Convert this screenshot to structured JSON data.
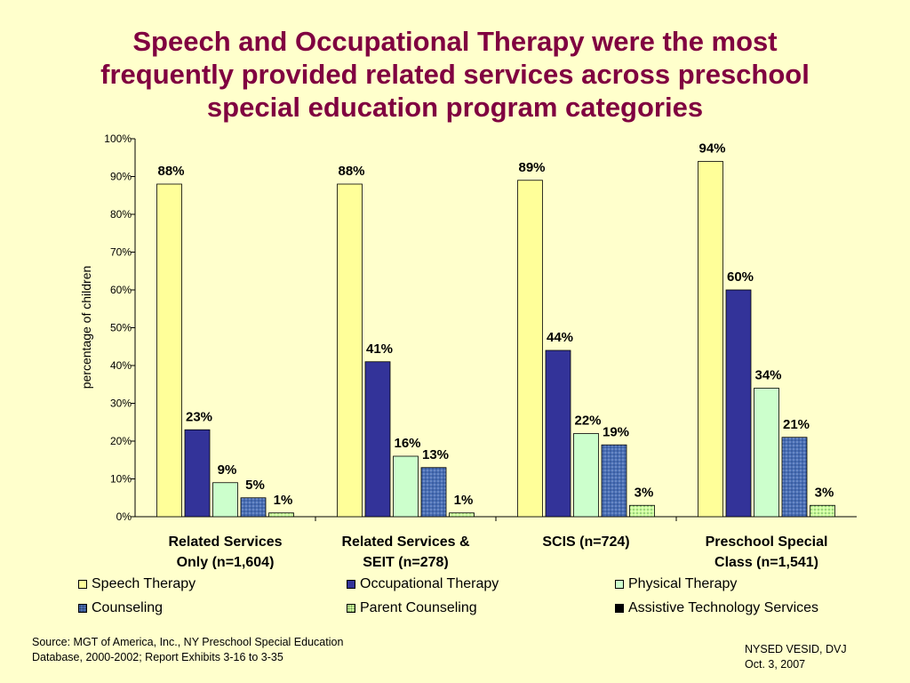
{
  "title_lines": [
    "Speech and Occupational Therapy were the most",
    "frequently provided related services across preschool",
    "special education program categories"
  ],
  "source_lines": [
    "Source: MGT of America, Inc., NY Preschool Special Education",
    "Database, 2000-2002; Report Exhibits 3-16 to 3-35"
  ],
  "footer_lines": [
    "NYSED VESID, DVJ",
    "Oct. 3, 2007"
  ],
  "chart_data": {
    "type": "bar",
    "title": "Speech and Occupational Therapy were the most frequently provided related services across preschool special education program categories",
    "ylabel": "percentage of children",
    "xlabel": "",
    "ylim": [
      0,
      100
    ],
    "yticks": [
      "0%",
      "10%",
      "20%",
      "30%",
      "40%",
      "50%",
      "60%",
      "70%",
      "80%",
      "90%",
      "100%"
    ],
    "categories": [
      [
        "Related Services",
        "Only (n=1,604)"
      ],
      [
        "Related Services &",
        "SEIT (n=278)"
      ],
      [
        "SCIS (n=724)"
      ],
      [
        "Preschool Special",
        "Class (n=1,541)"
      ]
    ],
    "legend_position": "bottom",
    "series": [
      {
        "name": "Speech Therapy",
        "color": "#ffff99",
        "pattern": "solid",
        "values": [
          88,
          88,
          89,
          94
        ],
        "labels": [
          "88%",
          "88%",
          "89%",
          "94%"
        ]
      },
      {
        "name": "Occupational Therapy",
        "color": "#333399",
        "pattern": "solid",
        "values": [
          23,
          41,
          44,
          60
        ],
        "labels": [
          "23%",
          "41%",
          "44%",
          "60%"
        ]
      },
      {
        "name": "Physical Therapy",
        "color": "#ccffcc",
        "pattern": "solid",
        "values": [
          9,
          16,
          22,
          34
        ],
        "labels": [
          "9%",
          "16%",
          "22%",
          "34%"
        ]
      },
      {
        "name": "Counseling",
        "color": "#4a6fb5",
        "pattern": "dotted",
        "values": [
          5,
          13,
          19,
          21
        ],
        "labels": [
          "5%",
          "13%",
          "19%",
          "21%"
        ]
      },
      {
        "name": "Parent Counseling",
        "color": "#ccff99",
        "pattern": "dotted",
        "values": [
          1,
          1,
          3,
          3
        ],
        "labels": [
          "1%",
          "1%",
          "3%",
          "3%"
        ]
      },
      {
        "name": "Assistive Technology Services",
        "color": "#000000",
        "pattern": "solid",
        "values": [
          0,
          0,
          0,
          0
        ],
        "labels": []
      }
    ]
  }
}
